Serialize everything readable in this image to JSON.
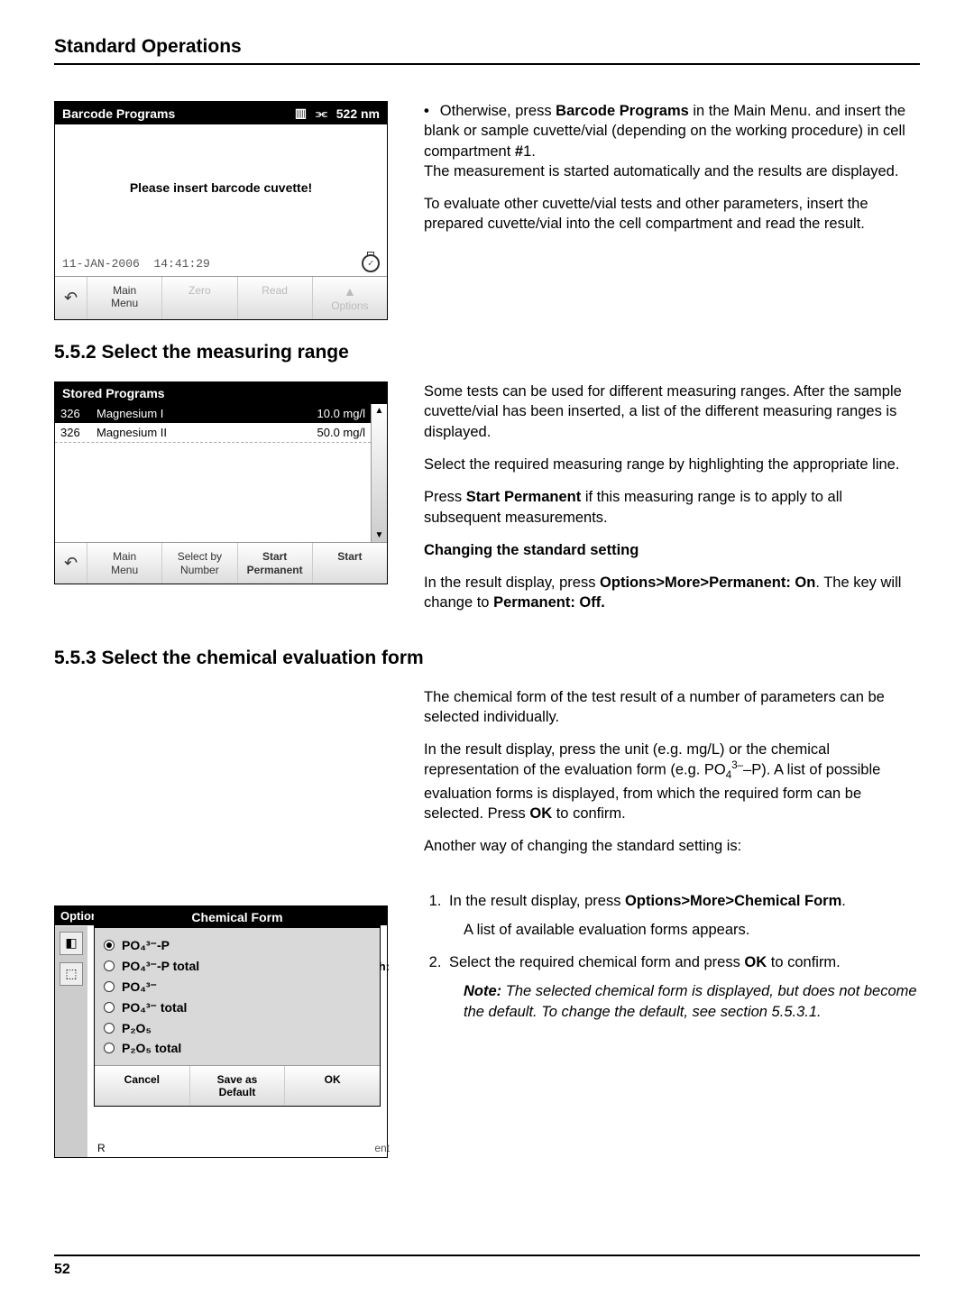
{
  "page": {
    "header": "Standard Operations",
    "footer_pagenum": "52"
  },
  "shot1": {
    "title": "Barcode Programs",
    "wavelength": "522 nm",
    "body_msg": "Please insert barcode cuvette!",
    "date": "11-JAN-2006",
    "time": "14:41:29",
    "buttons": {
      "undo": "↶",
      "main": "Main\nMenu",
      "zero": "Zero",
      "read": "Read",
      "options": "Options"
    }
  },
  "text1": {
    "bullet": "Otherwise, press Barcode Programs in the Main Menu. and insert the blank or sample cuvette/vial (depending on the working procedure) in cell compartment #1.",
    "p1": "The measurement is started automatically and the results are displayed.",
    "p2": "To evaluate other cuvette/vial tests and other parameters, insert the prepared cuvette/vial into the cell compartment and read the result."
  },
  "heading2": "5.5.2   Select the measuring range",
  "shot2": {
    "title": "Stored Programs",
    "rows": [
      {
        "num": "326",
        "name": "Magnesium I",
        "val": "10.0 mg/l",
        "sel": true
      },
      {
        "num": "326",
        "name": "Magnesium II",
        "val": "50.0 mg/l",
        "sel": false
      }
    ],
    "buttons": {
      "undo": "↶",
      "main": "Main\nMenu",
      "selby": "Select by\nNumber",
      "startperm": "Start\nPermanent",
      "start": "Start"
    }
  },
  "text2": {
    "p1": "Some tests can be used for different measuring ranges. After the sample cuvette/vial has been inserted, a list of the different measuring ranges is displayed.",
    "p2": "Select the required measuring range by highlighting the appropriate line.",
    "p3": "Press Start Permanent if this measuring range is to apply to all subsequent measurements.",
    "sub": "Changing the standard setting",
    "p4": "In the result display, press Options>More>Permanent: On. The key will change to Permanent: Off."
  },
  "heading3": "5.5.3   Select the chemical evaluation form",
  "text3": {
    "p1": "The chemical form of the test result of a number of parameters can be selected individually.",
    "p2": "In the result display, press the unit (e.g. mg/L) or the chemical representation of the evaluation form (e.g. PO₄³⁻–P). A list of possible evaluation forms is displayed, from which the required form can be selected. Press OK to confirm.",
    "p3": "Another way of changing the standard setting is:"
  },
  "shot3": {
    "back_title": "Options",
    "title": "Chemical Form",
    "options": [
      {
        "label": "PO₄³⁻-P",
        "checked": true
      },
      {
        "label": "PO₄³⁻-P total",
        "checked": false
      },
      {
        "label": "PO₄³⁻",
        "checked": false
      },
      {
        "label": "PO₄³⁻ total",
        "checked": false
      },
      {
        "label": "P₂O₅",
        "checked": false
      },
      {
        "label": "P₂O₅ total",
        "checked": false
      }
    ],
    "buttons": {
      "cancel": "Cancel",
      "save": "Save as\nDefault",
      "ok": "OK"
    },
    "extra_r": "R",
    "extra_ent": "ent",
    "extra_h": "h:"
  },
  "steps": {
    "s1a": "In the result display, press Options>More>Chemical Form.",
    "s1b": "A list of available evaluation forms appears.",
    "s2a": "Select the required chemical form and press OK to confirm.",
    "s2note": "Note: The selected chemical form is displayed, but does not become the default. To change the default, see section 5.5.3.1."
  }
}
